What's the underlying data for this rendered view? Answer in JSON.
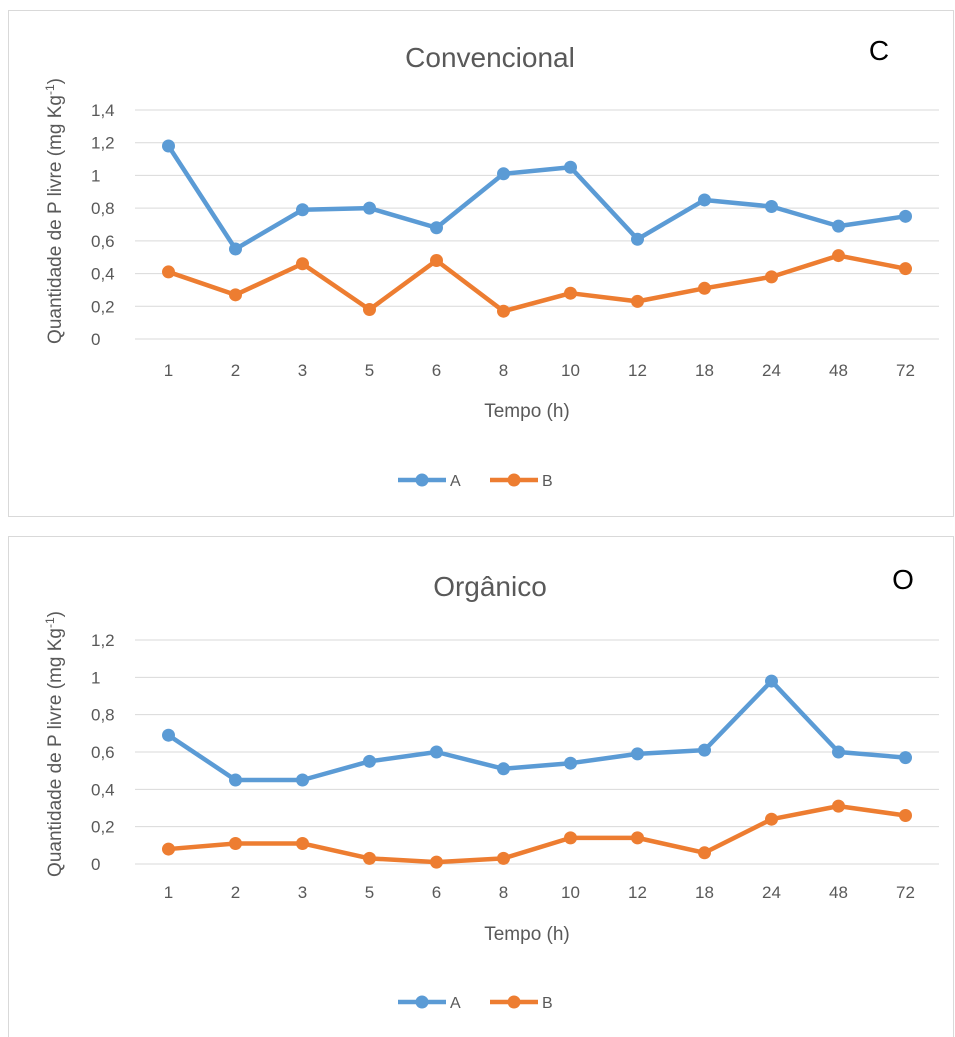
{
  "colors": {
    "A": "#5b9bd5",
    "B": "#ed7d31",
    "grid": "#d9d9d9",
    "text": "#595959"
  },
  "chart_data": [
    {
      "type": "line",
      "title": "Convencional",
      "tag": "C",
      "xlabel": "Tempo (h)",
      "ylabel": "Quantidade de P livre (mg Kg-1)",
      "categories": [
        "1",
        "2",
        "3",
        "5",
        "6",
        "8",
        "10",
        "12",
        "18",
        "24",
        "48",
        "72"
      ],
      "ylim": [
        0,
        1.4
      ],
      "yticks": [
        "0",
        "0,2",
        "0,4",
        "0,6",
        "0,8",
        "1",
        "1,2",
        "1,4"
      ],
      "grid": true,
      "legend_position": "bottom",
      "series": [
        {
          "name": "A",
          "values": [
            1.18,
            0.55,
            0.79,
            0.8,
            0.68,
            1.01,
            1.05,
            0.61,
            0.85,
            0.81,
            0.69,
            0.75
          ]
        },
        {
          "name": "B",
          "values": [
            0.41,
            0.27,
            0.46,
            0.18,
            0.48,
            0.17,
            0.28,
            0.23,
            0.31,
            0.38,
            0.51,
            0.43
          ]
        }
      ]
    },
    {
      "type": "line",
      "title": "Orgânico",
      "tag": "O",
      "xlabel": "Tempo (h)",
      "ylabel": "Quantidade de P livre (mg Kg-1)",
      "categories": [
        "1",
        "2",
        "3",
        "5",
        "6",
        "8",
        "10",
        "12",
        "18",
        "24",
        "48",
        "72"
      ],
      "ylim": [
        0,
        1.2
      ],
      "yticks": [
        "0",
        "0,2",
        "0,4",
        "0,6",
        "0,8",
        "1",
        "1,2"
      ],
      "grid": true,
      "legend_position": "bottom",
      "series": [
        {
          "name": "A",
          "values": [
            0.69,
            0.45,
            0.45,
            0.55,
            0.6,
            0.51,
            0.54,
            0.59,
            0.61,
            0.98,
            0.6,
            0.57
          ]
        },
        {
          "name": "B",
          "values": [
            0.08,
            0.11,
            0.11,
            0.03,
            0.01,
            0.03,
            0.14,
            0.14,
            0.06,
            0.24,
            0.31,
            0.26
          ]
        }
      ]
    }
  ]
}
